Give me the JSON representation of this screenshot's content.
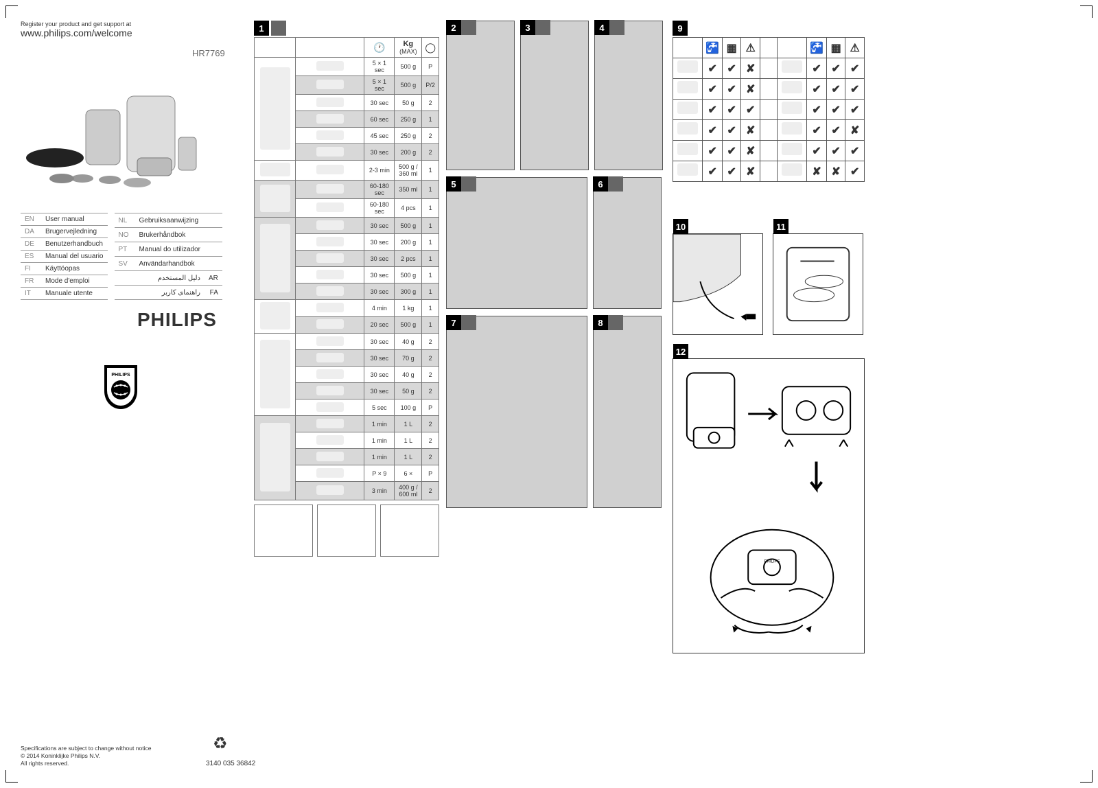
{
  "header": {
    "register_line": "Register your product and get support at",
    "url": "www.philips.com/welcome",
    "model": "HR7769"
  },
  "languages_left": [
    {
      "code": "EN",
      "label": "User manual"
    },
    {
      "code": "DA",
      "label": "Brugervejledning"
    },
    {
      "code": "DE",
      "label": "Benutzerhandbuch"
    },
    {
      "code": "ES",
      "label": "Manual del usuario"
    },
    {
      "code": "FI",
      "label": "Käyttöopas"
    },
    {
      "code": "FR",
      "label": "Mode d'emploi"
    },
    {
      "code": "IT",
      "label": "Manuale utente"
    }
  ],
  "languages_right": [
    {
      "code": "NL",
      "label": "Gebruiksaanwijzing"
    },
    {
      "code": "NO",
      "label": "Brukerhåndbok"
    },
    {
      "code": "PT",
      "label": "Manual do utilizador"
    },
    {
      "code": "SV",
      "label": "Användarhandbok"
    },
    {
      "code": "AR",
      "label": "دليل المستخدم"
    },
    {
      "code": "FA",
      "label": "راهنمای کاربر"
    }
  ],
  "brand": "PHILIPS",
  "footer": {
    "legal1": "Specifications are subject to change without notice",
    "legal2": "© 2014 Koninklijke Philips N.V.",
    "legal3": "All rights reserved.",
    "code": "3140 035 36842"
  },
  "spec_table": {
    "headers": {
      "time_icon": "clock",
      "weight_label": "(MAX)",
      "weight_icon": "kg",
      "speed_icon": "dial"
    },
    "rows": [
      {
        "alt": false,
        "time": "5 × 1 sec",
        "qty": "500 g",
        "speed": "P"
      },
      {
        "alt": true,
        "time": "5 × 1 sec",
        "qty": "500 g",
        "speed": "P/2"
      },
      {
        "alt": false,
        "time": "30 sec",
        "qty": "50 g",
        "speed": "2"
      },
      {
        "alt": true,
        "time": "60 sec",
        "qty": "250 g",
        "speed": "1"
      },
      {
        "alt": false,
        "time": "45 sec",
        "qty": "250 g",
        "speed": "2"
      },
      {
        "alt": true,
        "time": "30 sec",
        "qty": "200 g",
        "speed": "2"
      },
      {
        "alt": false,
        "time": "2-3 min",
        "qty": "500 g / 360 ml",
        "speed": "1"
      },
      {
        "alt": true,
        "time": "60-180 sec",
        "qty": "350 ml",
        "speed": "1"
      },
      {
        "alt": false,
        "time": "60-180 sec",
        "qty": "4 pcs",
        "speed": "1"
      },
      {
        "alt": true,
        "time": "30 sec",
        "qty": "500 g",
        "speed": "1"
      },
      {
        "alt": false,
        "time": "30 sec",
        "qty": "200 g",
        "speed": "1"
      },
      {
        "alt": true,
        "time": "30 sec",
        "qty": "2 pcs",
        "speed": "1"
      },
      {
        "alt": false,
        "time": "30 sec",
        "qty": "500 g",
        "speed": "1"
      },
      {
        "alt": true,
        "time": "30 sec",
        "qty": "300 g",
        "speed": "1"
      },
      {
        "alt": false,
        "time": "4 min",
        "qty": "1 kg",
        "speed": "1"
      },
      {
        "alt": true,
        "time": "20 sec",
        "qty": "500 g",
        "speed": "1"
      },
      {
        "alt": false,
        "time": "30 sec",
        "qty": "40 g",
        "speed": "2"
      },
      {
        "alt": true,
        "time": "30 sec",
        "qty": "70 g",
        "speed": "2"
      },
      {
        "alt": false,
        "time": "30 sec",
        "qty": "40 g",
        "speed": "2"
      },
      {
        "alt": true,
        "time": "30 sec",
        "qty": "50 g",
        "speed": "2"
      },
      {
        "alt": false,
        "time": "5 sec",
        "qty": "100 g",
        "speed": "P"
      },
      {
        "alt": true,
        "time": "1 min",
        "qty": "1 L",
        "speed": "2"
      },
      {
        "alt": false,
        "time": "1 min",
        "qty": "1 L",
        "speed": "2"
      },
      {
        "alt": true,
        "time": "1 min",
        "qty": "1 L",
        "speed": "2"
      },
      {
        "alt": false,
        "time": "P × 9",
        "qty": "6 ×",
        "speed": "P"
      },
      {
        "alt": true,
        "time": "3 min",
        "qty": "400 g / 600 ml",
        "speed": "2"
      }
    ]
  },
  "panels": {
    "p1": "1",
    "p2": "2",
    "p3": "3",
    "p4": "4",
    "p5": "5",
    "p6": "6",
    "p7": "7",
    "p8": "8",
    "p9": "9",
    "p10": "10",
    "p11": "11",
    "p12": "12"
  },
  "clean_matrix": {
    "tick": "✔",
    "cross": "✘",
    "rows": [
      [
        "✔",
        "✔",
        "✘",
        "",
        "",
        "✔",
        "✔",
        "✔"
      ],
      [
        "✔",
        "✔",
        "✘",
        "",
        "",
        "✔",
        "✔",
        "✔"
      ],
      [
        "✔",
        "✔",
        "✔",
        "",
        "",
        "✔",
        "✔",
        "✔"
      ],
      [
        "✔",
        "✔",
        "✘",
        "",
        "",
        "✔",
        "✔",
        "✘"
      ],
      [
        "✔",
        "✔",
        "✘",
        "",
        "",
        "✔",
        "✔",
        "✔"
      ],
      [
        "✔",
        "✔",
        "✘",
        "",
        "",
        "✘",
        "✘",
        "✔"
      ]
    ]
  },
  "colors": {
    "panel_grey": "#d0d0d0",
    "alt_row": "#d8d8d8",
    "border": "#555555"
  }
}
